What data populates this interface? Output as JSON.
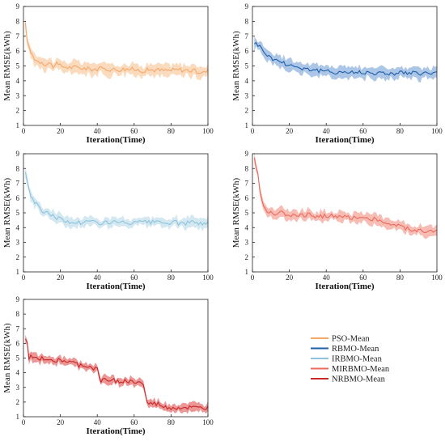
{
  "chart_data": [
    {
      "type": "line",
      "panel": 1,
      "xlabel": "Iteration(Time)",
      "ylabel": "Mean RMSE(kWh)",
      "xlim": [
        0,
        100
      ],
      "ylim": [
        1,
        9
      ],
      "xticks": [
        "0",
        "20",
        "40",
        "60",
        "80",
        "100"
      ],
      "yticks": [
        "1",
        "2",
        "3",
        "4",
        "5",
        "6",
        "7",
        "8",
        "9"
      ],
      "series": [
        {
          "name": "PSO-Mean",
          "color": "#F4A86A",
          "band_color": "#F9CFA8",
          "band_width": 0.35,
          "x": [
            1,
            2,
            3,
            4,
            5,
            6,
            8,
            10,
            12,
            14,
            16,
            18,
            20,
            25,
            30,
            35,
            40,
            45,
            50,
            55,
            60,
            65,
            70,
            75,
            80,
            85,
            90,
            95,
            98,
            100
          ],
          "y": [
            7.8,
            6.8,
            6.2,
            5.9,
            5.7,
            5.5,
            5.3,
            5.3,
            5.1,
            5.2,
            5.0,
            5.1,
            5.0,
            4.9,
            4.9,
            4.8,
            4.8,
            4.8,
            4.75,
            4.8,
            4.75,
            4.7,
            4.75,
            4.7,
            4.7,
            4.75,
            4.7,
            4.6,
            4.55,
            4.7
          ]
        }
      ]
    },
    {
      "type": "line",
      "panel": 2,
      "xlabel": "Iteration(Time)",
      "ylabel": "Mean RMSE(kWh)",
      "xlim": [
        0,
        100
      ],
      "ylim": [
        1,
        9
      ],
      "xticks": [
        "0",
        "20",
        "40",
        "60",
        "80",
        "100"
      ],
      "yticks": [
        "1",
        "2",
        "3",
        "4",
        "5",
        "6",
        "7",
        "8",
        "9"
      ],
      "series": [
        {
          "name": "RBMO-Mean",
          "color": "#1F5FA8",
          "band_color": "#8FB3DD",
          "band_width": 0.35,
          "x": [
            1,
            3,
            5,
            7,
            9,
            11,
            13,
            15,
            17,
            20,
            25,
            30,
            35,
            40,
            45,
            50,
            55,
            60,
            65,
            70,
            75,
            80,
            85,
            90,
            95,
            100
          ],
          "y": [
            6.6,
            6.4,
            6.2,
            5.9,
            5.6,
            5.5,
            5.4,
            5.3,
            5.2,
            5.1,
            4.9,
            4.8,
            4.7,
            4.6,
            4.6,
            4.6,
            4.55,
            4.6,
            4.55,
            4.5,
            4.5,
            4.55,
            4.5,
            4.5,
            4.5,
            4.5
          ]
        }
      ]
    },
    {
      "type": "line",
      "panel": 3,
      "xlabel": "Iteration(Time)",
      "ylabel": "Mean RMSE(kWh)",
      "xlim": [
        0,
        100
      ],
      "ylim": [
        1,
        9
      ],
      "xticks": [
        "0",
        "20",
        "40",
        "60",
        "80",
        "100"
      ],
      "yticks": [
        "1",
        "2",
        "3",
        "4",
        "5",
        "6",
        "7",
        "8",
        "9"
      ],
      "series": [
        {
          "name": "IRBMO-Mean",
          "color": "#8EC3DC",
          "band_color": "#C5E0EE",
          "band_width": 0.3,
          "x": [
            1,
            2,
            3,
            4,
            5,
            6,
            8,
            10,
            12,
            15,
            18,
            20,
            22,
            25,
            30,
            35,
            40,
            45,
            50,
            55,
            60,
            65,
            70,
            75,
            80,
            85,
            90,
            95,
            100
          ],
          "y": [
            7.8,
            7.2,
            6.6,
            6.2,
            6.0,
            5.7,
            5.4,
            5.2,
            5.0,
            4.9,
            4.7,
            4.6,
            4.4,
            4.35,
            4.35,
            4.4,
            4.35,
            4.35,
            4.35,
            4.3,
            4.3,
            4.35,
            4.35,
            4.3,
            4.35,
            4.3,
            4.3,
            4.35,
            4.3
          ]
        }
      ]
    },
    {
      "type": "line",
      "panel": 4,
      "xlabel": "Iteration(Time)",
      "ylabel": "Mean RMSE(kWh)",
      "xlim": [
        0,
        100
      ],
      "ylim": [
        1,
        9
      ],
      "xticks": [
        "0",
        "20",
        "40",
        "60",
        "80",
        "100"
      ],
      "yticks": [
        "1",
        "2",
        "3",
        "4",
        "5",
        "6",
        "7",
        "8",
        "9"
      ],
      "series": [
        {
          "name": "MIRBMO-Mean",
          "color": "#EC6A5C",
          "band_color": "#F4A79C",
          "band_width": 0.3,
          "x": [
            1,
            2,
            3,
            4,
            5,
            6,
            7,
            8,
            10,
            12,
            15,
            20,
            25,
            30,
            35,
            40,
            45,
            50,
            55,
            60,
            65,
            70,
            72,
            75,
            80,
            85,
            88,
            90,
            95,
            100
          ],
          "y": [
            8.7,
            8.2,
            7.5,
            6.5,
            6.0,
            5.5,
            5.2,
            5.0,
            5.1,
            5.0,
            5.0,
            4.9,
            4.9,
            4.85,
            4.8,
            4.8,
            4.75,
            4.7,
            4.7,
            4.65,
            4.6,
            4.5,
            4.3,
            4.2,
            4.1,
            3.9,
            3.9,
            3.8,
            3.75,
            3.7
          ]
        }
      ]
    },
    {
      "type": "line",
      "panel": 5,
      "xlabel": "Iteration(Time)",
      "ylabel": "Mean RMSE(kWh)",
      "xlim": [
        0,
        100
      ],
      "ylim": [
        1,
        9
      ],
      "xticks": [
        "0",
        "20",
        "40",
        "60",
        "80",
        "100"
      ],
      "yticks": [
        "1",
        "2",
        "3",
        "4",
        "5",
        "6",
        "7",
        "8",
        "9"
      ],
      "series": [
        {
          "name": "NRBMO-Mean",
          "color": "#C62828",
          "band_color": "#E57373",
          "band_width": 0.25,
          "x": [
            1,
            2,
            3,
            5,
            8,
            12,
            15,
            20,
            25,
            28,
            30,
            33,
            35,
            40,
            42,
            45,
            50,
            55,
            60,
            64,
            65,
            66,
            67,
            70,
            72,
            75,
            76,
            80,
            85,
            90,
            95,
            100
          ],
          "y": [
            6.2,
            6.0,
            5.0,
            5.1,
            5.0,
            4.95,
            4.9,
            4.85,
            4.7,
            4.6,
            4.5,
            4.5,
            4.4,
            4.2,
            3.5,
            3.5,
            3.45,
            3.4,
            3.35,
            3.3,
            3.2,
            2.5,
            1.9,
            1.85,
            1.85,
            1.8,
            1.6,
            1.6,
            1.6,
            1.6,
            1.55,
            1.6
          ]
        }
      ]
    }
  ],
  "legend": {
    "placement": "bottom-right",
    "items": [
      {
        "label": "PSO-Mean",
        "color": "#F4A86A"
      },
      {
        "label": "RBMO-Mean",
        "color": "#1F5FA8"
      },
      {
        "label": "IRBMO-Mean",
        "color": "#8EC3DC"
      },
      {
        "label": "MIRBMO-Mean",
        "color": "#EC6A5C"
      },
      {
        "label": "NRBMO-Mean",
        "color": "#C62828"
      }
    ]
  }
}
